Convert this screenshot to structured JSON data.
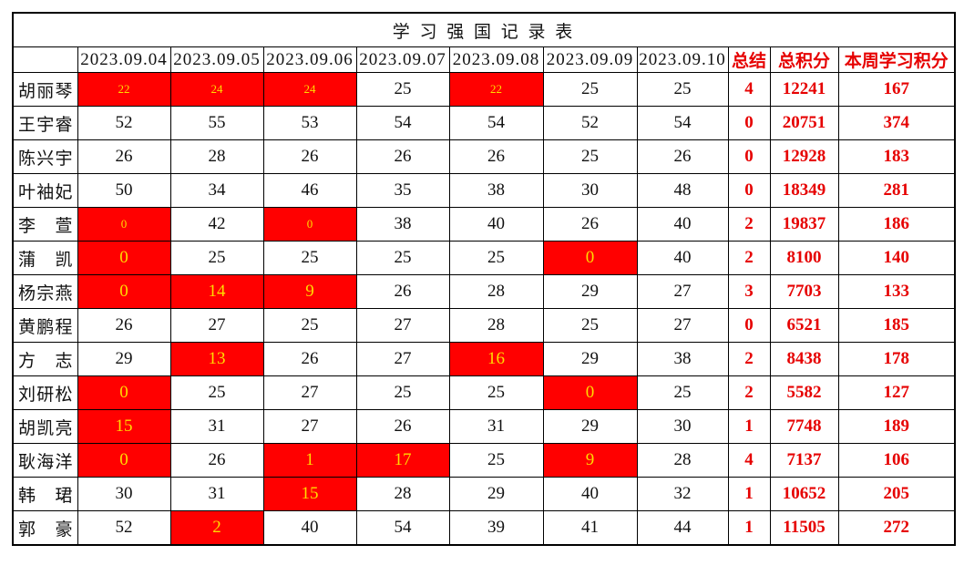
{
  "title": "学 习 强 国 记 录 表",
  "colors": {
    "highlight_bg": "#ff0000",
    "highlight_text": "#ffdc00",
    "accent_text": "#e60000",
    "grid_line": "#000000"
  },
  "columns": {
    "date_headers": [
      "2023.09.04",
      "2023.09.05",
      "2023.09.06",
      "2023.09.07",
      "2023.09.08",
      "2023.09.09",
      "2023.09.10"
    ],
    "summary_headers": [
      "总结",
      "总积分",
      "本周学习积分"
    ]
  },
  "rows": [
    {
      "name": "胡丽琴",
      "daily": [
        22,
        24,
        24,
        25,
        22,
        25,
        25
      ],
      "highlight": [
        0,
        1,
        2,
        4
      ],
      "small": [
        0,
        1,
        2,
        4
      ],
      "summary": 4,
      "total": 12241,
      "week": 167
    },
    {
      "name": "王宇睿",
      "daily": [
        52,
        55,
        53,
        54,
        54,
        52,
        54
      ],
      "highlight": [],
      "small": [],
      "summary": 0,
      "total": 20751,
      "week": 374
    },
    {
      "name": "陈兴宇",
      "daily": [
        26,
        28,
        26,
        26,
        26,
        25,
        26
      ],
      "highlight": [],
      "small": [],
      "summary": 0,
      "total": 12928,
      "week": 183
    },
    {
      "name": "叶袖妃",
      "daily": [
        50,
        34,
        46,
        35,
        38,
        30,
        48
      ],
      "highlight": [],
      "small": [],
      "summary": 0,
      "total": 18349,
      "week": 281
    },
    {
      "name": "李萱",
      "daily": [
        0,
        42,
        0,
        38,
        40,
        26,
        40
      ],
      "highlight": [
        0,
        2
      ],
      "small": [
        0,
        2
      ],
      "summary": 2,
      "total": 19837,
      "week": 186
    },
    {
      "name": "蒲凯",
      "daily": [
        0,
        25,
        25,
        25,
        25,
        0,
        40
      ],
      "highlight": [
        0,
        5
      ],
      "small": [],
      "summary": 2,
      "total": 8100,
      "week": 140
    },
    {
      "name": "杨宗燕",
      "daily": [
        0,
        14,
        9,
        26,
        28,
        29,
        27
      ],
      "highlight": [
        0,
        1,
        2
      ],
      "small": [],
      "summary": 3,
      "total": 7703,
      "week": 133
    },
    {
      "name": "黄鹏程",
      "daily": [
        26,
        27,
        25,
        27,
        28,
        25,
        27
      ],
      "highlight": [],
      "small": [],
      "summary": 0,
      "total": 6521,
      "week": 185
    },
    {
      "name": "方志",
      "daily": [
        29,
        13,
        26,
        27,
        16,
        29,
        38
      ],
      "highlight": [
        1,
        4
      ],
      "small": [],
      "summary": 2,
      "total": 8438,
      "week": 178
    },
    {
      "name": "刘研松",
      "daily": [
        0,
        25,
        27,
        25,
        25,
        0,
        25
      ],
      "highlight": [
        0,
        5
      ],
      "small": [],
      "summary": 2,
      "total": 5582,
      "week": 127
    },
    {
      "name": "胡凯亮",
      "daily": [
        15,
        31,
        27,
        26,
        31,
        29,
        30
      ],
      "highlight": [
        0
      ],
      "small": [],
      "summary": 1,
      "total": 7748,
      "week": 189
    },
    {
      "name": "耿海洋",
      "daily": [
        0,
        26,
        1,
        17,
        25,
        9,
        28
      ],
      "highlight": [
        0,
        2,
        3,
        5
      ],
      "small": [],
      "summary": 4,
      "total": 7137,
      "week": 106
    },
    {
      "name": "韩珺",
      "daily": [
        30,
        31,
        15,
        28,
        29,
        40,
        32
      ],
      "highlight": [
        2
      ],
      "small": [],
      "summary": 1,
      "total": 10652,
      "week": 205
    },
    {
      "name": "郭豪",
      "daily": [
        52,
        2,
        40,
        54,
        39,
        41,
        44
      ],
      "highlight": [
        1
      ],
      "small": [],
      "summary": 1,
      "total": 11505,
      "week": 272
    }
  ]
}
